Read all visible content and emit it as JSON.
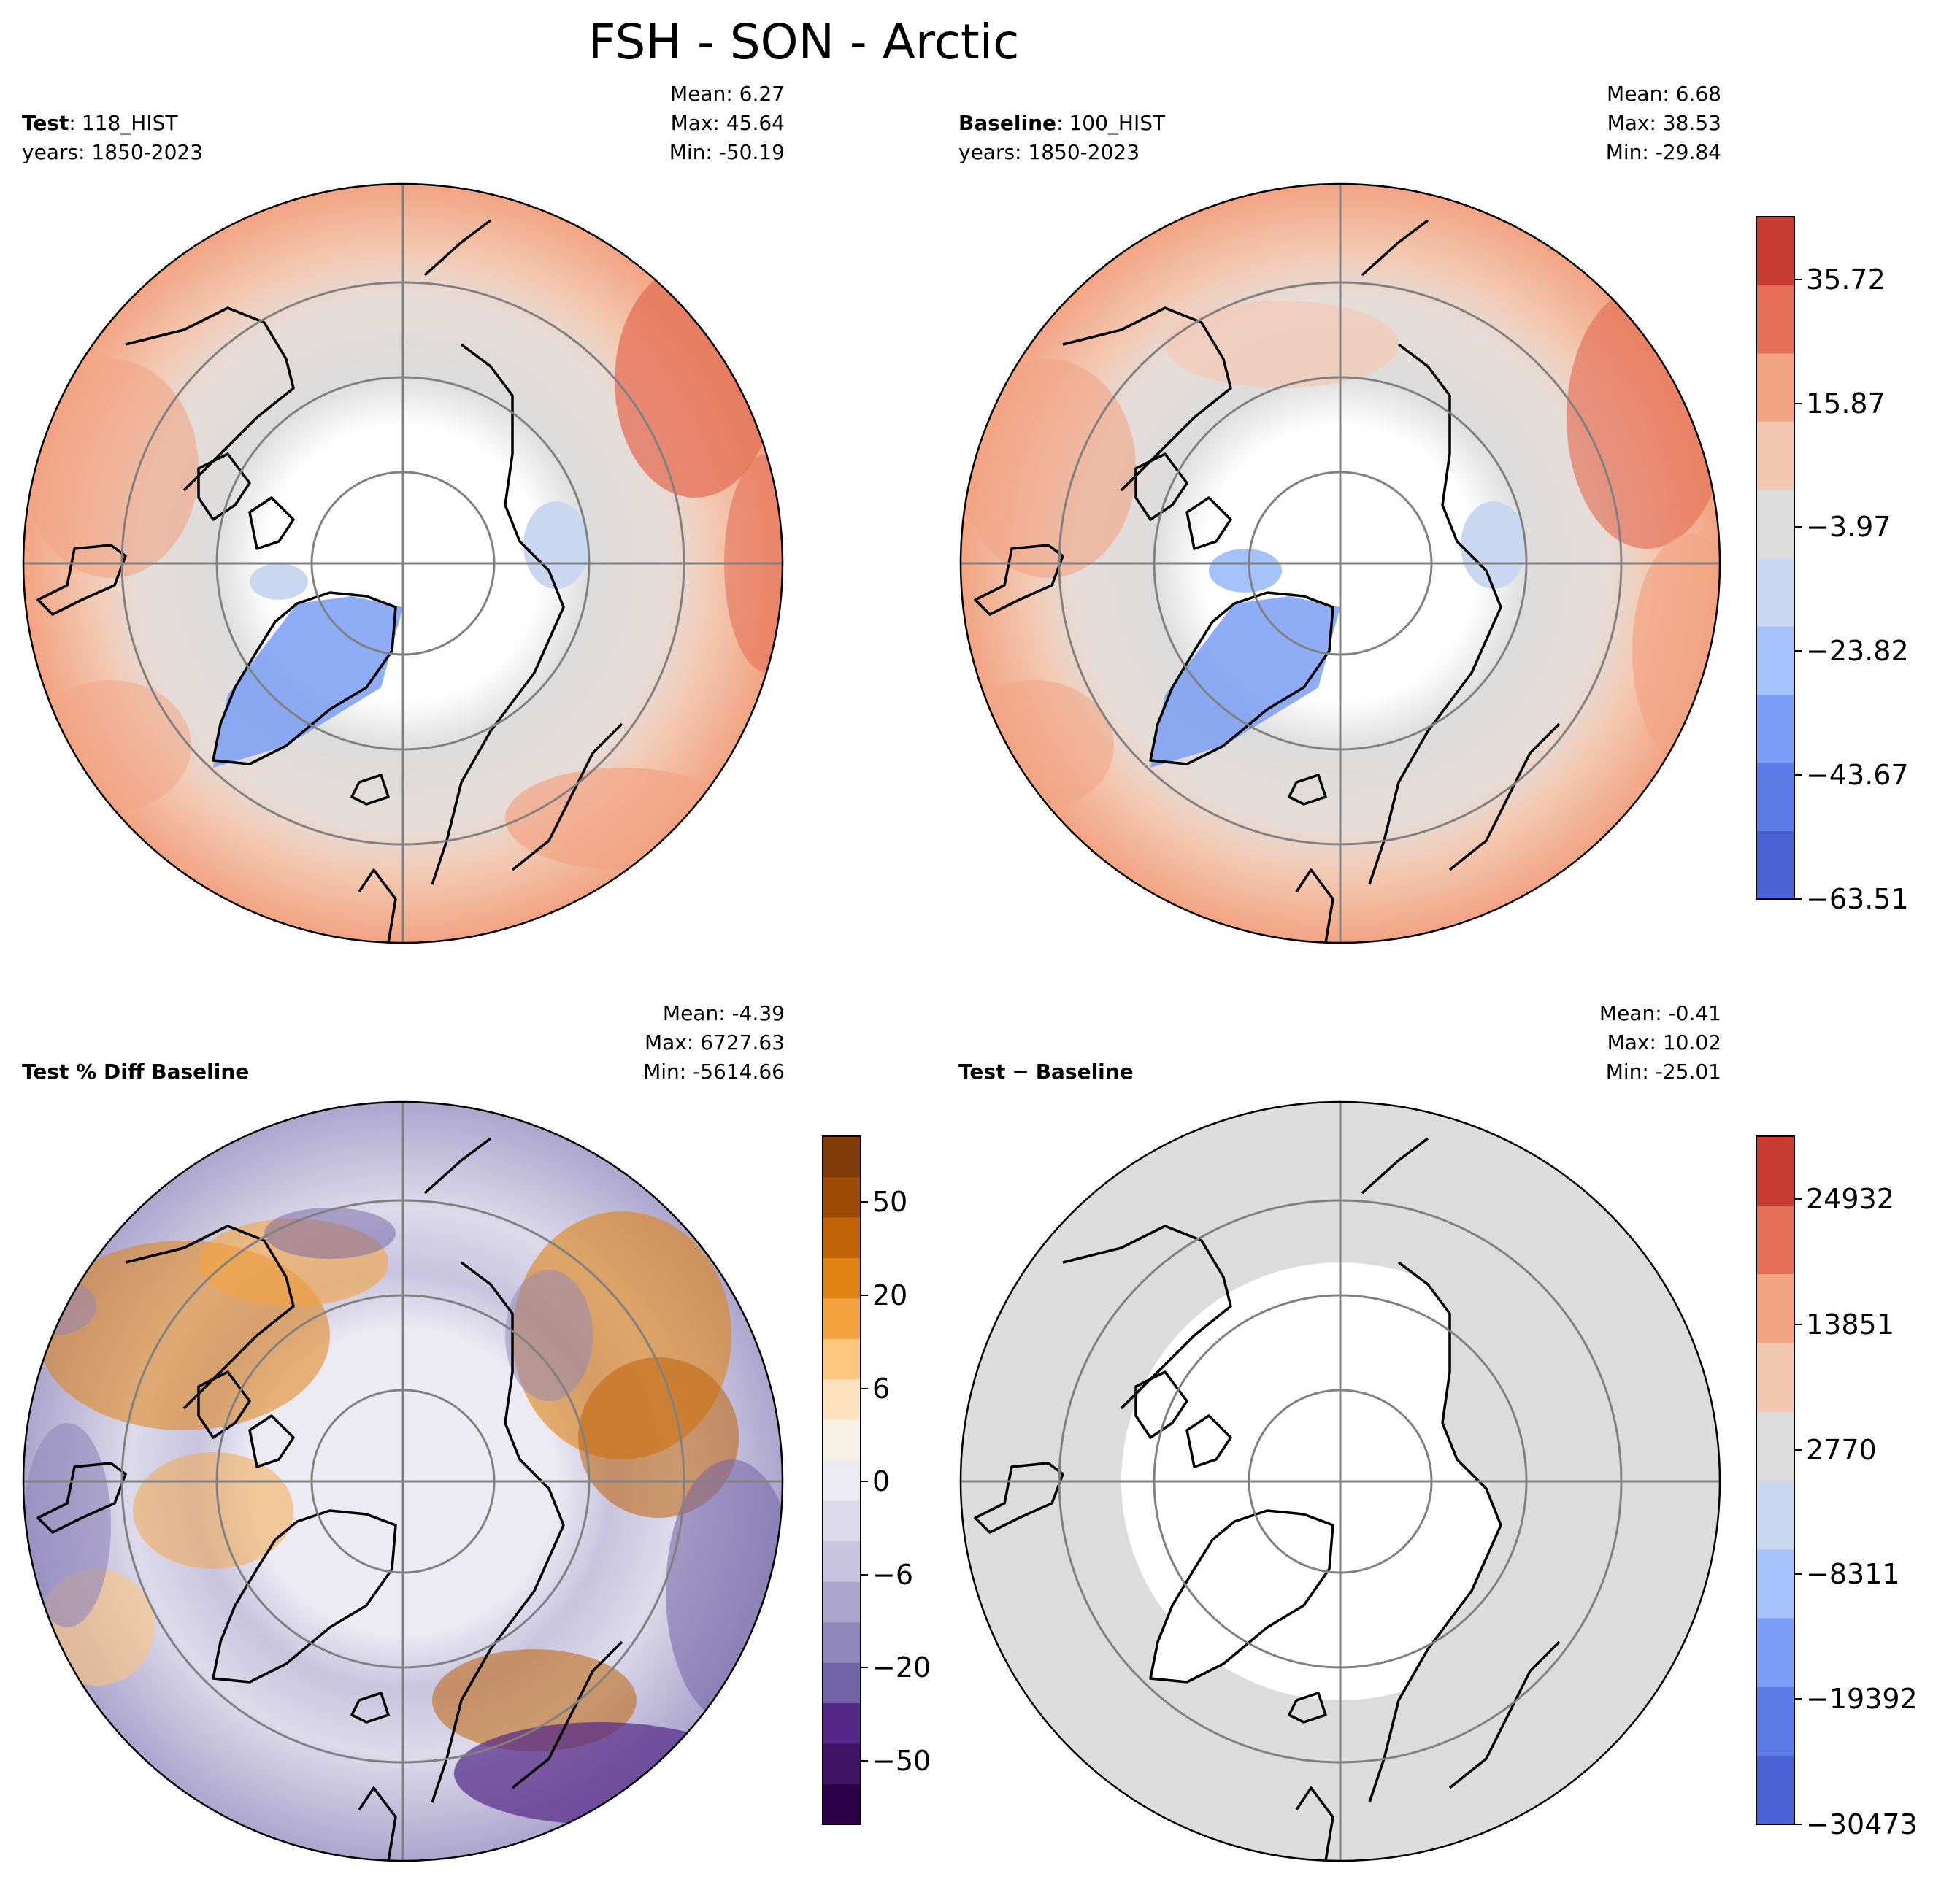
{
  "figure_title": "FSH - SON - Arctic",
  "panels": [
    {
      "id": "test",
      "label_bold": "Test",
      "label_sep": ":",
      "label_rest": "118_HIST",
      "years": "years: 1850-2023",
      "stats": {
        "mean": "Mean:  6.27",
        "max": "Max: 45.64",
        "min": "Min: -50.19"
      }
    },
    {
      "id": "baseline",
      "label_bold": "Baseline",
      "label_sep": ":",
      "label_rest": "100_HIST",
      "years": "years: 1850-2023",
      "stats": {
        "mean": "Mean:  6.68",
        "max": "Max: 38.53",
        "min": "Min: -29.84"
      }
    },
    {
      "id": "pctdiff",
      "label_bold": "Test % Diff Baseline",
      "stats": {
        "mean": "Mean: -4.39",
        "max": "Max: 6727.63",
        "min": "Min: -5614.66"
      }
    },
    {
      "id": "diff",
      "label_bold": "Test",
      "label_sep": " − ",
      "label_rest": "Baseline",
      "stats": {
        "mean": "Mean: -0.41",
        "max": "Max: 10.02",
        "min": "Min: -25.01"
      }
    }
  ],
  "colorbars": {
    "top": {
      "name": "coolwarm",
      "colors": [
        "#4a62d4",
        "#5b7ce6",
        "#7b9ff6",
        "#a6c2fa",
        "#c9d8f0",
        "#dcdcdc",
        "#f3c9b3",
        "#f2a483",
        "#e46f56",
        "#c93a32"
      ],
      "tick_labels": [
        "35.72",
        "15.87",
        "−3.97",
        "−23.82",
        "−43.67",
        "−63.51"
      ]
    },
    "pct": {
      "name": "PuOr_r",
      "colors": [
        "#2d004b",
        "#3f1366",
        "#542788",
        "#7262a6",
        "#8f86bb",
        "#aca6cd",
        "#c8c4df",
        "#dcdaea",
        "#ecebf3",
        "#f7f1e6",
        "#fde3c0",
        "#fdc57d",
        "#f5a340",
        "#e08213",
        "#bf6208",
        "#9c4a06",
        "#7f3b08"
      ],
      "tick_labels": [
        "50",
        "20",
        "6",
        "0",
        "−6",
        "−20",
        "−50"
      ]
    },
    "diff": {
      "name": "coolwarm",
      "colors": [
        "#4a62d4",
        "#5b7ce6",
        "#7b9ff6",
        "#a6c2fa",
        "#c9d8f0",
        "#dcdcdc",
        "#f3c9b3",
        "#f2a483",
        "#e46f56",
        "#c93a32"
      ],
      "tick_labels": [
        "24932",
        "13851",
        "2770",
        "−8311",
        "−19392",
        "−30473"
      ]
    }
  },
  "chart_data": [
    {
      "type": "heatmap",
      "title": "Test: 118_HIST",
      "projection": "north polar stereographic",
      "variable": "FSH",
      "season": "SON",
      "region": "Arctic",
      "years": "1850-2023",
      "mean": 6.27,
      "max": 45.64,
      "min": -50.19,
      "colorbar_levels": [
        -63.51,
        -43.67,
        -23.82,
        -3.97,
        15.87,
        35.72
      ],
      "shared_colorbar": "top"
    },
    {
      "type": "heatmap",
      "title": "Baseline: 100_HIST",
      "projection": "north polar stereographic",
      "variable": "FSH",
      "season": "SON",
      "region": "Arctic",
      "years": "1850-2023",
      "mean": 6.68,
      "max": 38.53,
      "min": -29.84,
      "colorbar_levels": [
        -63.51,
        -43.67,
        -23.82,
        -3.97,
        15.87,
        35.72
      ],
      "shared_colorbar": "top"
    },
    {
      "type": "heatmap",
      "title": "Test % Diff Baseline",
      "projection": "north polar stereographic",
      "mean": -4.39,
      "max": 6727.63,
      "min": -5614.66,
      "colorbar_levels": [
        -50,
        -20,
        -6,
        0,
        6,
        20,
        50
      ],
      "colorbar": "pct"
    },
    {
      "type": "heatmap",
      "title": "Test - Baseline",
      "projection": "north polar stereographic",
      "mean": -0.41,
      "max": 10.02,
      "min": -25.01,
      "colorbar_levels": [
        -30473,
        -19392,
        -8311,
        2770,
        13851,
        24932
      ],
      "colorbar": "diff"
    }
  ]
}
